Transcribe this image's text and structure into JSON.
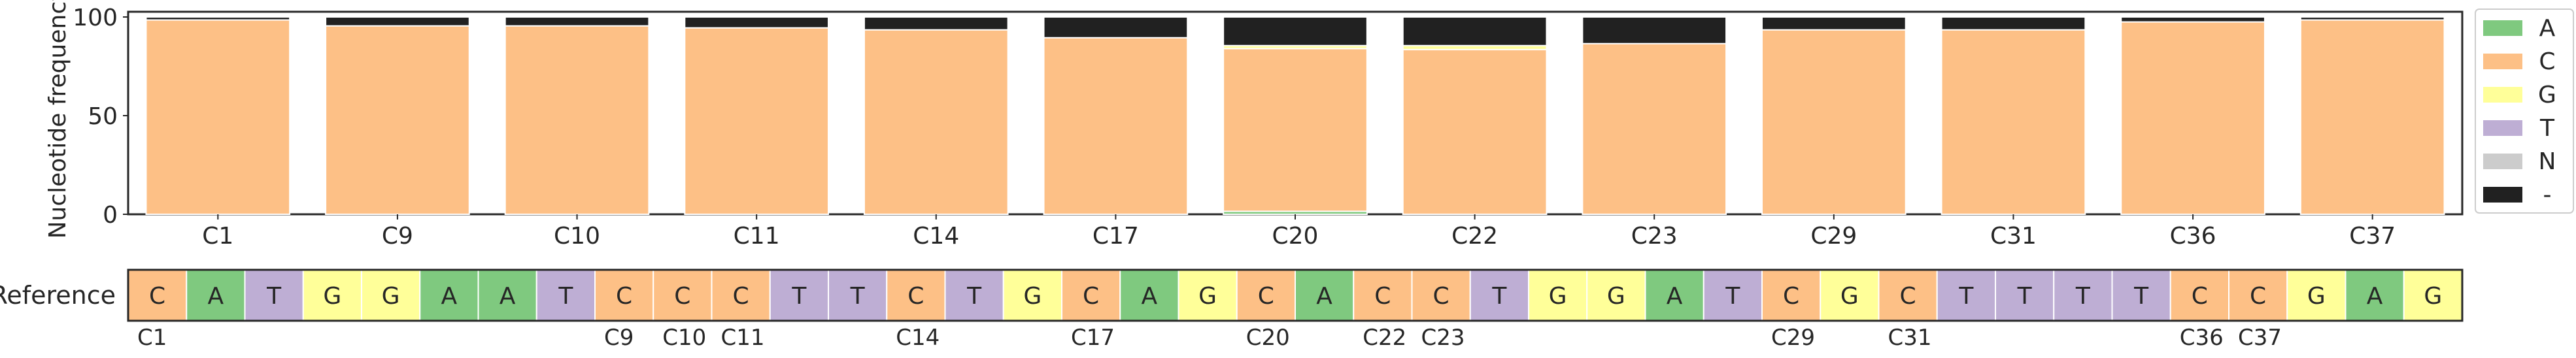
{
  "chart_data": {
    "type": "bar",
    "stacked": true,
    "ylabel": "Nucleotide frequency",
    "ylim": [
      0,
      100
    ],
    "yticks": [
      0,
      50,
      100
    ],
    "categories": [
      "C1",
      "C9",
      "C10",
      "C11",
      "C14",
      "C17",
      "C20",
      "C22",
      "C23",
      "C29",
      "C31",
      "C36",
      "C37"
    ],
    "series": [
      {
        "name": "A",
        "color": "#7fc97f",
        "values": [
          0,
          0,
          0,
          0,
          0,
          0,
          1.5,
          0,
          0,
          0,
          0,
          0,
          0
        ]
      },
      {
        "name": "C",
        "color": "#fdc086",
        "values": [
          98.5,
          95.5,
          95.5,
          94.5,
          93.5,
          89.5,
          82.5,
          83.5,
          86.5,
          93.5,
          93.5,
          97.5,
          98.5
        ]
      },
      {
        "name": "G",
        "color": "#ffff99",
        "values": [
          0,
          0,
          0,
          0,
          0,
          0,
          1.5,
          2,
          0,
          0,
          0,
          0,
          0
        ]
      },
      {
        "name": "T",
        "color": "#beaed4",
        "values": [
          0,
          0,
          0,
          0,
          0,
          0,
          0,
          0,
          0,
          0,
          0,
          0,
          0
        ]
      },
      {
        "name": "N",
        "color": "#cccccc",
        "values": [
          0,
          0,
          0,
          0,
          0,
          0,
          0,
          0,
          0,
          0,
          0,
          0,
          0
        ]
      },
      {
        "name": "-",
        "color": "#212121",
        "values": [
          1.5,
          4.5,
          4.5,
          5.5,
          6.5,
          10.5,
          14.5,
          14.5,
          13.5,
          6.5,
          6.5,
          2.5,
          1.5
        ]
      }
    ],
    "legend_position": "right",
    "grid": false,
    "reference": {
      "label": "Reference",
      "sequence": [
        "C",
        "A",
        "T",
        "G",
        "G",
        "A",
        "A",
        "T",
        "C",
        "C",
        "C",
        "T",
        "T",
        "C",
        "T",
        "G",
        "C",
        "A",
        "G",
        "C",
        "A",
        "C",
        "C",
        "T",
        "G",
        "G",
        "A",
        "T",
        "C",
        "G",
        "C",
        "T",
        "T",
        "T",
        "T",
        "C",
        "C",
        "G",
        "A",
        "G"
      ],
      "position_labels": [
        {
          "index": 0,
          "label": "C1"
        },
        {
          "index": 8,
          "label": "C9"
        },
        {
          "index": 9,
          "label": "C10"
        },
        {
          "index": 10,
          "label": "C11"
        },
        {
          "index": 13,
          "label": "C14"
        },
        {
          "index": 16,
          "label": "C17"
        },
        {
          "index": 19,
          "label": "C20"
        },
        {
          "index": 21,
          "label": "C22"
        },
        {
          "index": 22,
          "label": "C23"
        },
        {
          "index": 28,
          "label": "C29"
        },
        {
          "index": 30,
          "label": "C31"
        },
        {
          "index": 35,
          "label": "C36"
        },
        {
          "index": 36,
          "label": "C37"
        }
      ]
    }
  }
}
